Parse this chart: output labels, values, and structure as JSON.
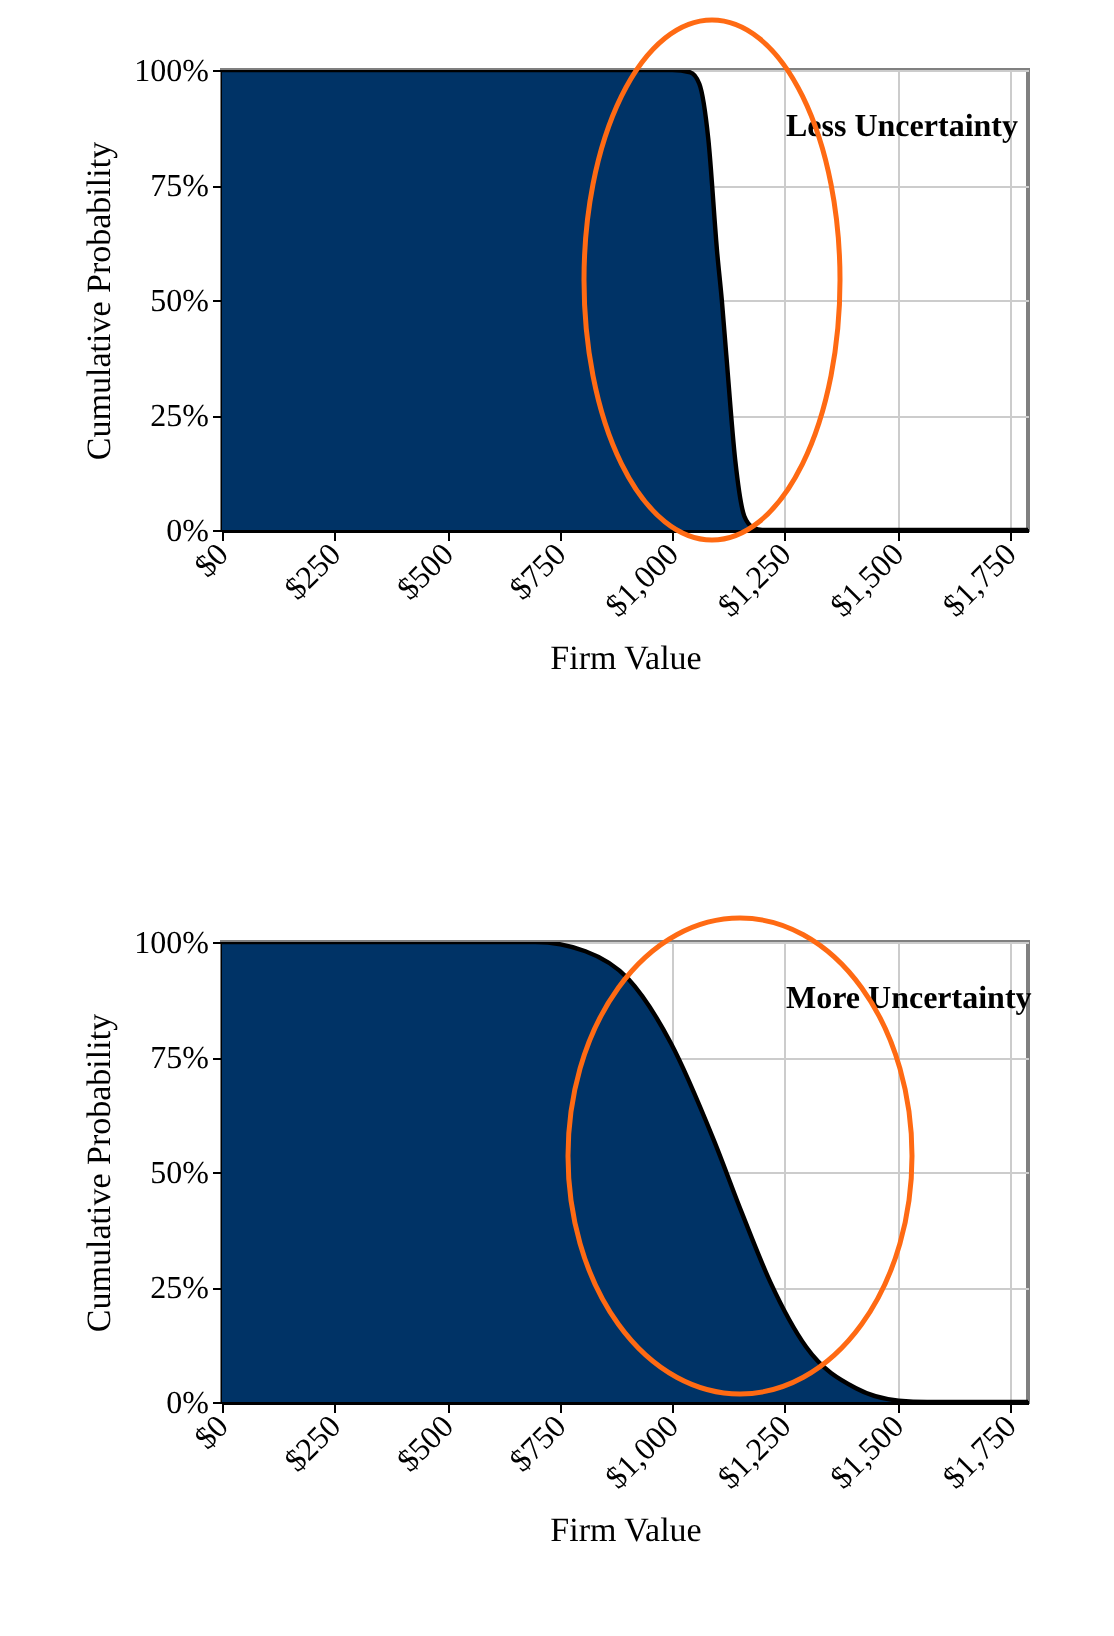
{
  "chart_data": [
    {
      "type": "area",
      "xlabel": "Firm Value",
      "ylabel": "Cumulative Probability",
      "annotations": [
        "Less Uncertainty"
      ],
      "x": [
        0,
        1000,
        1040,
        1060,
        1080,
        1100,
        1110,
        1120,
        1140,
        1160,
        1180,
        1200,
        1790
      ],
      "series": [
        {
          "color": "#003366",
          "values": [
            100,
            100,
            99.5,
            97,
            85,
            60,
            50,
            38,
            15,
            3,
            0.5,
            0,
            0
          ]
        }
      ],
      "xlim": [
        0,
        1790
      ],
      "xticks": [
        {
          "value": 0,
          "label": "$0"
        },
        {
          "value": 250,
          "label": "$250"
        },
        {
          "value": 500,
          "label": "$500"
        },
        {
          "value": 750,
          "label": "$750"
        },
        {
          "value": 1000,
          "label": "$1,000"
        },
        {
          "value": 1250,
          "label": "$1,250"
        },
        {
          "value": 1500,
          "label": "$1,500"
        },
        {
          "value": 1750,
          "label": "$1,750"
        }
      ],
      "ylim": [
        0,
        100
      ],
      "yticks": [
        {
          "value": 0,
          "label": "0%"
        },
        {
          "value": 25,
          "label": "25%"
        },
        {
          "value": 50,
          "label": "50%"
        },
        {
          "value": 75,
          "label": "75%"
        },
        {
          "value": 100,
          "label": "100%"
        }
      ],
      "grid": true
    },
    {
      "type": "area",
      "xlabel": "Firm Value",
      "ylabel": "Cumulative Probability",
      "annotations": [
        "More Uncertainty"
      ],
      "x": [
        0,
        696,
        807,
        902,
        997,
        1092,
        1155,
        1218,
        1297,
        1408,
        1503,
        1566,
        1790
      ],
      "series": [
        {
          "color": "#003366",
          "values": [
            100,
            100,
            98,
            92,
            78,
            57,
            41,
            26,
            12,
            3,
            0.3,
            0,
            0
          ]
        }
      ],
      "xlim": [
        0,
        1790
      ],
      "xticks": [
        {
          "value": 0,
          "label": "$0"
        },
        {
          "value": 250,
          "label": "$250"
        },
        {
          "value": 500,
          "label": "$500"
        },
        {
          "value": 750,
          "label": "$750"
        },
        {
          "value": 1000,
          "label": "$1,000"
        },
        {
          "value": 1250,
          "label": "$1,250"
        },
        {
          "value": 1500,
          "label": "$1,500"
        },
        {
          "value": 1750,
          "label": "$1,750"
        }
      ],
      "ylim": [
        0,
        100
      ],
      "yticks": [
        {
          "value": 0,
          "label": "0%"
        },
        {
          "value": 25,
          "label": "25%"
        },
        {
          "value": 50,
          "label": "50%"
        },
        {
          "value": 75,
          "label": "75%"
        },
        {
          "value": 100,
          "label": "100%"
        }
      ],
      "grid": true
    }
  ]
}
